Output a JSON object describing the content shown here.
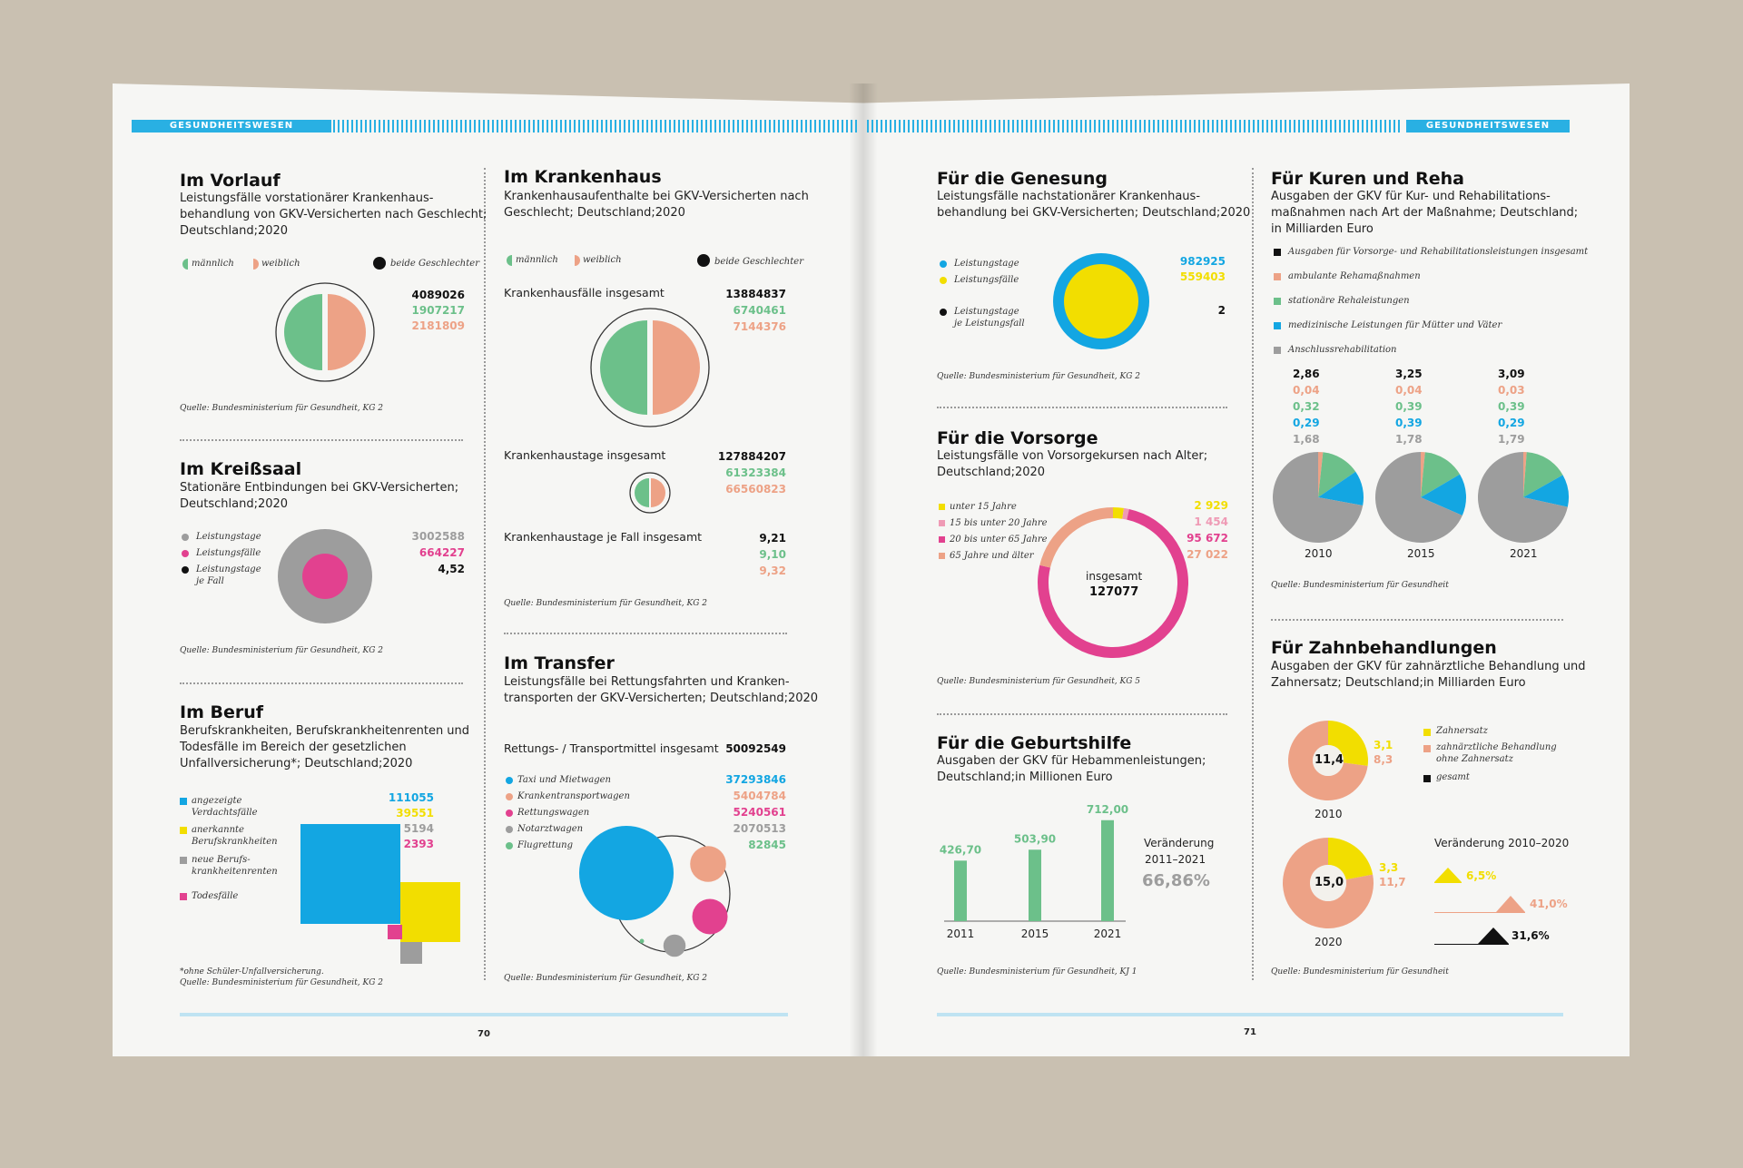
{
  "colors": {
    "male": "#6cc08a",
    "female": "#eda286",
    "both": "#111111",
    "cyan": "#13a6e2",
    "yellow": "#f2de00",
    "magenta": "#e2418f",
    "gray": "#9d9d9d",
    "salmon": "#eda286",
    "green": "#6cc08a",
    "black": "#111111"
  },
  "header": {
    "left": "GESUNDHEITSWESEN",
    "right": "GESUNDHEITSWESEN"
  },
  "page_numbers": {
    "left": "70",
    "right": "71"
  },
  "vorlauf": {
    "title": "Im Vorlauf",
    "subtitle": [
      "Leistungsfälle vorstationärer Krankenhaus-",
      "behandlung von GKV-Versicherten nach Geschlecht;",
      "Deutschland;2020"
    ],
    "legend": {
      "male": "männlich",
      "female": "weiblich",
      "both": "beide Geschlechter"
    },
    "values": {
      "total": "4089026",
      "male": "1907217",
      "female": "2181809"
    },
    "source": "Quelle: Bundesministerium für Gesundheit, KG 2"
  },
  "kreisssaal": {
    "title": "Im Kreißsaal",
    "subtitle": [
      "Stationäre Entbindungen bei GKV-Versicherten;",
      "Deutschland;2020"
    ],
    "legend": {
      "days": "Leistungstage",
      "cases": "Leistungsfälle",
      "per_case_1": "Leistungstage",
      "per_case_2": "je Fall"
    },
    "values": {
      "days": "3002588",
      "cases": "664227",
      "per_case": "4,52"
    },
    "source": "Quelle: Bundesministerium für Gesundheit, KG 2"
  },
  "beruf": {
    "title": "Im Beruf",
    "subtitle": [
      "Berufskrankheiten, Berufskrankheitenrenten und",
      "Todesfälle im Bereich der gesetzlichen",
      "Unfallversicherung*; Deutschland;2020"
    ],
    "legend": [
      {
        "lines": [
          "angezeigte",
          "Verdachtsfälle"
        ],
        "value": "111055",
        "color": "#13a6e2"
      },
      {
        "lines": [
          "anerkannte",
          "Berufskrankheiten"
        ],
        "value": "39551",
        "color": "#f2de00"
      },
      {
        "lines": [
          "neue Berufs-",
          "krankheitenrenten"
        ],
        "value": "5194",
        "color": "#9d9d9d"
      },
      {
        "lines": [
          "Todesfälle"
        ],
        "value": "2393",
        "color": "#e2418f"
      }
    ],
    "footnote": "*ohne Schüler-Unfallversicherung.",
    "source": "Quelle: Bundesministerium für Gesundheit, KG 2"
  },
  "krankenhaus": {
    "title": "Im Krankenhaus",
    "subtitle": [
      "Krankenhausaufenthalte bei GKV-Versicherten nach",
      "Geschlecht; Deutschland;2020"
    ],
    "legend": {
      "male": "männlich",
      "female": "weiblich",
      "both": "beide Geschlechter"
    },
    "faelle": {
      "label": "Krankenhausfälle insgesamt",
      "total": "13884837",
      "male": "6740461",
      "female": "7144376"
    },
    "tage": {
      "label": "Krankenhaustage insgesamt",
      "total": "127884207",
      "male": "61323384",
      "female": "66560823"
    },
    "jefall": {
      "label": "Krankenhaustage je Fall insgesamt",
      "total": "9,21",
      "male": "9,10",
      "female": "9,32"
    },
    "source": "Quelle: Bundesministerium für Gesundheit, KG 2"
  },
  "transfer": {
    "title": "Im Transfer",
    "subtitle": [
      "Leistungsfälle bei Rettungsfahrten und Kranken-",
      "transporten der GKV-Versicherten; Deutschland;2020"
    ],
    "total_label": "Rettungs- / Transportmittel insgesamt",
    "total": "50092549",
    "legend": [
      {
        "label": "Taxi und Mietwagen",
        "value": "37293846",
        "color": "#13a6e2"
      },
      {
        "label": "Krankentransportwagen",
        "value": "5404784",
        "color": "#eda286"
      },
      {
        "label": "Rettungswagen",
        "value": "5240561",
        "color": "#e2418f"
      },
      {
        "label": "Notarztwagen",
        "value": "2070513",
        "color": "#9d9d9d"
      },
      {
        "label": "Flugrettung",
        "value": "82845",
        "color": "#6cc08a"
      }
    ],
    "source": "Quelle: Bundesministerium für Gesundheit, KG 2"
  },
  "genesung": {
    "title": "Für die Genesung",
    "subtitle": [
      "Leistungsfälle nachstationärer Krankenhaus-",
      "behandlung bei GKV-Versicherten; Deutschland;2020"
    ],
    "legend": {
      "days": "Leistungstage",
      "cases": "Leistungsfälle",
      "per_1": "Leistungstage",
      "per_2": "je Leistungsfall"
    },
    "values": {
      "days": "982925",
      "cases": "559403",
      "per": "2"
    },
    "source": "Quelle: Bundesministerium für Gesundheit, KG 2"
  },
  "vorsorge": {
    "title": "Für die Vorsorge",
    "subtitle": [
      "Leistungsfälle von Vorsorgekursen nach Alter;",
      "Deutschland;2020"
    ],
    "center_label": "insgesamt",
    "center_value": "127077",
    "source": "Quelle: Bundesministerium für Gesundheit, KG 5"
  },
  "geburtshilfe": {
    "title": "Für die Geburtshilfe",
    "subtitle": [
      "Ausgaben der GKV für Hebammenleistungen;",
      "Deutschland;in Millionen Euro"
    ],
    "change_label_1": "Veränderung",
    "change_label_2": "2011–2021",
    "change_value": "66,86%",
    "source": "Quelle: Bundesministerium für Gesundheit, KJ 1"
  },
  "kuren": {
    "title": "Für Kuren und Reha",
    "subtitle": [
      "Ausgaben der GKV für Kur- und Rehabilitations-",
      "maßnahmen nach Art der Maßnahme; Deutschland;",
      "in Milliarden Euro"
    ],
    "legend": [
      {
        "label": "Ausgaben für Vorsorge- und Rehabilitationsleistungen insgesamt",
        "color": "#111111"
      },
      {
        "label": "ambulante Rehamaßnahmen",
        "color": "#eda286"
      },
      {
        "label": "stationäre Rehaleistungen",
        "color": "#6cc08a"
      },
      {
        "label": "medizinische Leistungen für Mütter und Väter",
        "color": "#13a6e2"
      },
      {
        "label": "Anschlussrehabilitation",
        "color": "#9d9d9d"
      }
    ],
    "source": "Quelle: Bundesministerium für Gesundheit"
  },
  "zahn": {
    "title": "Für Zahnbehandlungen",
    "subtitle": [
      "Ausgaben der GKV für zahnärztliche Behandlung und",
      "Zahnersatz; Deutschland;in Milliarden Euro"
    ],
    "legend": [
      {
        "lines": [
          "Zahnersatz"
        ],
        "color": "#f2de00"
      },
      {
        "lines": [
          "zahnärztliche Behandlung",
          "ohne Zahnersatz"
        ],
        "color": "#eda286"
      },
      {
        "lines": [
          "gesamt"
        ],
        "color": "#111111"
      }
    ],
    "change_title": "Veränderung 2010–2020",
    "changes": [
      {
        "value": "6,5%",
        "color": "#f2de00"
      },
      {
        "value": "41,0%",
        "color": "#eda286"
      },
      {
        "value": "31,6%",
        "color": "#111111"
      }
    ],
    "source": "Quelle: Bundesministerium für Gesundheit"
  },
  "chart_data": [
    {
      "type": "pie",
      "title": "Im Vorlauf",
      "labels": [
        "männlich",
        "weiblich"
      ],
      "values": [
        1907217,
        2181809
      ],
      "total": 4089026
    },
    {
      "type": "pie",
      "title": "Im Kreißsaal",
      "labels": [
        "Leistungstage",
        "Leistungsfälle"
      ],
      "values": [
        3002588,
        664227
      ]
    },
    {
      "type": "area",
      "title": "Im Beruf",
      "labels": [
        "angezeigte Verdachtsfälle",
        "anerkannte Berufskrankheiten",
        "neue Berufskrankheitenrenten",
        "Todesfälle"
      ],
      "values": [
        111055,
        39551,
        5194,
        2393
      ]
    },
    {
      "type": "pie",
      "title": "Krankenhausfälle insgesamt",
      "labels": [
        "männlich",
        "weiblich"
      ],
      "values": [
        6740461,
        7144376
      ],
      "total": 13884837
    },
    {
      "type": "pie",
      "title": "Krankenhaustage insgesamt",
      "labels": [
        "männlich",
        "weiblich"
      ],
      "values": [
        61323384,
        66560823
      ],
      "total": 127884207
    },
    {
      "type": "table",
      "title": "Krankenhaustage je Fall insgesamt",
      "labels": [
        "insgesamt",
        "männlich",
        "weiblich"
      ],
      "values": [
        9.21,
        9.1,
        9.32
      ]
    },
    {
      "type": "scatter",
      "title": "Im Transfer",
      "labels": [
        "Taxi und Mietwagen",
        "Krankentransportwagen",
        "Rettungswagen",
        "Notarztwagen",
        "Flugrettung"
      ],
      "values": [
        37293846,
        5404784,
        5240561,
        2070513,
        82845
      ]
    },
    {
      "type": "pie",
      "title": "Für die Genesung",
      "labels": [
        "Leistungstage",
        "Leistungsfälle"
      ],
      "values": [
        982925,
        559403
      ]
    },
    {
      "type": "pie",
      "title": "Für die Vorsorge",
      "labels": [
        "unter 15 Jahre",
        "15 bis unter 20 Jahre",
        "20 bis unter 65 Jahre",
        "65 Jahre und älter"
      ],
      "values": [
        2929,
        1454,
        95672,
        27022
      ],
      "colors": [
        "#f2de00",
        "#ef9ab5",
        "#e2418f",
        "#eda286"
      ],
      "total": 127077
    },
    {
      "type": "bar",
      "title": "Für die Geburtshilfe",
      "categories": [
        "2011",
        "2015",
        "2021"
      ],
      "values": [
        426.7,
        503.9,
        712.0
      ],
      "labels": [
        "426,70",
        "503,90",
        "712,00"
      ]
    },
    {
      "type": "pie",
      "title": "Für Kuren und Reha",
      "categories": [
        "2010",
        "2015",
        "2021"
      ],
      "series": [
        {
          "name": "Ausgaben für Vorsorge- und Rehabilitationsleistungen insgesamt",
          "values": [
            2.86,
            3.25,
            3.09
          ],
          "labels": [
            "2,86",
            "3,25",
            "3,09"
          ]
        },
        {
          "name": "ambulante Rehamaßnahmen",
          "values": [
            0.04,
            0.04,
            0.03
          ],
          "labels": [
            "0,04",
            "0,04",
            "0,03"
          ]
        },
        {
          "name": "stationäre Rehaleistungen",
          "values": [
            0.32,
            0.39,
            0.39
          ],
          "labels": [
            "0,32",
            "0,39",
            "0,39"
          ]
        },
        {
          "name": "medizinische Leistungen für Mütter und Väter",
          "values": [
            0.29,
            0.39,
            0.29
          ],
          "labels": [
            "0,29",
            "0,39",
            "0,29"
          ]
        },
        {
          "name": "Anschlussrehabilitation",
          "values": [
            1.68,
            1.78,
            1.79
          ],
          "labels": [
            "1,68",
            "1,78",
            "1,79"
          ]
        }
      ]
    },
    {
      "type": "pie",
      "title": "Für Zahnbehandlungen",
      "categories": [
        "2010",
        "2020"
      ],
      "series": [
        {
          "name": "Zahnersatz",
          "values": [
            3.1,
            3.3
          ],
          "labels": [
            "3,1",
            "3,3"
          ]
        },
        {
          "name": "zahnärztliche Behandlung ohne Zahnersatz",
          "values": [
            8.3,
            11.7
          ],
          "labels": [
            "8,3",
            "11,7"
          ]
        },
        {
          "name": "gesamt",
          "values": [
            11.4,
            15.0
          ],
          "labels": [
            "11,4",
            "15,0"
          ]
        }
      ]
    }
  ]
}
